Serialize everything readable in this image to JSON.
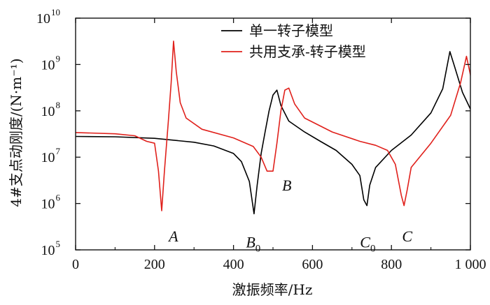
{
  "chart_data": {
    "type": "line",
    "title": "",
    "xlabel": "激振频率/Hz",
    "ylabel": "4#支点动刚度/(N·m⁻¹)",
    "xlim": [
      0,
      1000
    ],
    "ylim_exponent": [
      5,
      10
    ],
    "y_scale": "log",
    "grid": false,
    "legend_position": "top-right",
    "x_ticks": [
      0,
      200,
      400,
      600,
      800,
      1000
    ],
    "x_tick_labels": [
      "0",
      "200",
      "400",
      "600",
      "800",
      "1 000"
    ],
    "y_tick_exponents": [
      5,
      6,
      7,
      8,
      9,
      10
    ],
    "y_tick_base": "10",
    "series": [
      {
        "name": "单一转子模型",
        "color": "#000000",
        "points": [
          [
            0,
            28000000.0
          ],
          [
            100,
            27500000.0
          ],
          [
            200,
            25500000.0
          ],
          [
            300,
            21000000.0
          ],
          [
            350,
            17500000.0
          ],
          [
            400,
            12000000.0
          ],
          [
            420,
            8000000.0
          ],
          [
            440,
            3000000.0
          ],
          [
            452,
            600000.0
          ],
          [
            460,
            2500000.0
          ],
          [
            470,
            12000000.0
          ],
          [
            480,
            35000000.0
          ],
          [
            490,
            100000000.0
          ],
          [
            500,
            220000000.0
          ],
          [
            510,
            280000000.0
          ],
          [
            520,
            130000000.0
          ],
          [
            540,
            60000000.0
          ],
          [
            580,
            35000000.0
          ],
          [
            620,
            22000000.0
          ],
          [
            660,
            14000000.0
          ],
          [
            700,
            7000000.0
          ],
          [
            720,
            4000000.0
          ],
          [
            730,
            1200000.0
          ],
          [
            738,
            900000.0
          ],
          [
            745,
            2500000.0
          ],
          [
            760,
            6000000.0
          ],
          [
            800,
            14000000.0
          ],
          [
            850,
            30000000.0
          ],
          [
            900,
            90000000.0
          ],
          [
            930,
            300000000.0
          ],
          [
            948,
            1900000000.0
          ],
          [
            960,
            900000000.0
          ],
          [
            980,
            250000000.0
          ],
          [
            1000,
            110000000.0
          ]
        ]
      },
      {
        "name": "共用支承-转子模型",
        "color": "#e0201b",
        "points": [
          [
            0,
            34000000.0
          ],
          [
            100,
            32000000.0
          ],
          [
            150,
            29000000.0
          ],
          [
            180,
            22000000.0
          ],
          [
            200,
            20000000.0
          ],
          [
            210,
            5000000.0
          ],
          [
            218,
            700000.0
          ],
          [
            225,
            5000000.0
          ],
          [
            235,
            60000000.0
          ],
          [
            242,
            400000000.0
          ],
          [
            248,
            3200000000.0
          ],
          [
            255,
            700000000.0
          ],
          [
            265,
            150000000.0
          ],
          [
            280,
            70000000.0
          ],
          [
            320,
            40000000.0
          ],
          [
            400,
            26000000.0
          ],
          [
            450,
            17000000.0
          ],
          [
            470,
            10000000.0
          ],
          [
            485,
            5000000.0
          ],
          [
            500,
            5000000.0
          ],
          [
            510,
            20000000.0
          ],
          [
            520,
            100000000.0
          ],
          [
            530,
            280000000.0
          ],
          [
            540,
            310000000.0
          ],
          [
            555,
            140000000.0
          ],
          [
            580,
            70000000.0
          ],
          [
            650,
            35000000.0
          ],
          [
            720,
            22000000.0
          ],
          [
            760,
            18000000.0
          ],
          [
            790,
            14000000.0
          ],
          [
            810,
            7000000.0
          ],
          [
            825,
            1500000.0
          ],
          [
            832,
            900000.0
          ],
          [
            840,
            2000000.0
          ],
          [
            850,
            6000000.0
          ],
          [
            900,
            20000000.0
          ],
          [
            950,
            80000000.0
          ],
          [
            975,
            400000000.0
          ],
          [
            990,
            1500000000.0
          ],
          [
            1000,
            600000000.0
          ],
          [
            1005,
            300000000.0
          ]
        ]
      }
    ],
    "annotations": [
      {
        "text": "A",
        "sub": "",
        "x": 248,
        "y": 200000.0
      },
      {
        "text": "B",
        "sub": "0",
        "x": 450,
        "y": 150000.0
      },
      {
        "text": "B",
        "sub": "",
        "x": 535,
        "y": 2500000.0
      },
      {
        "text": "C",
        "sub": "0",
        "x": 740,
        "y": 150000.0
      },
      {
        "text": "C",
        "sub": "",
        "x": 840,
        "y": 200000.0
      }
    ]
  }
}
